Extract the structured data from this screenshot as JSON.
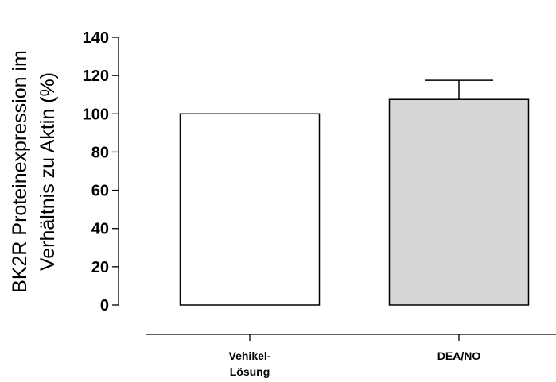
{
  "chart_data": {
    "type": "bar",
    "categories": [
      [
        "Vehikel-",
        "Lösung"
      ],
      [
        "DEA/NO"
      ]
    ],
    "values": [
      100,
      107.5
    ],
    "error_upper": [
      0,
      117.5
    ],
    "bar_colors": [
      "#ffffff",
      "#d6d6d6"
    ],
    "title": "",
    "xlabel": "",
    "ylabel_lines": [
      "BK2R Proteinexpression im",
      "Verhältnis zu Aktin (%)"
    ],
    "ylim": [
      0,
      140
    ],
    "yticks": [
      0,
      20,
      40,
      60,
      80,
      100,
      120,
      140
    ],
    "grid": false,
    "legend": false
  }
}
